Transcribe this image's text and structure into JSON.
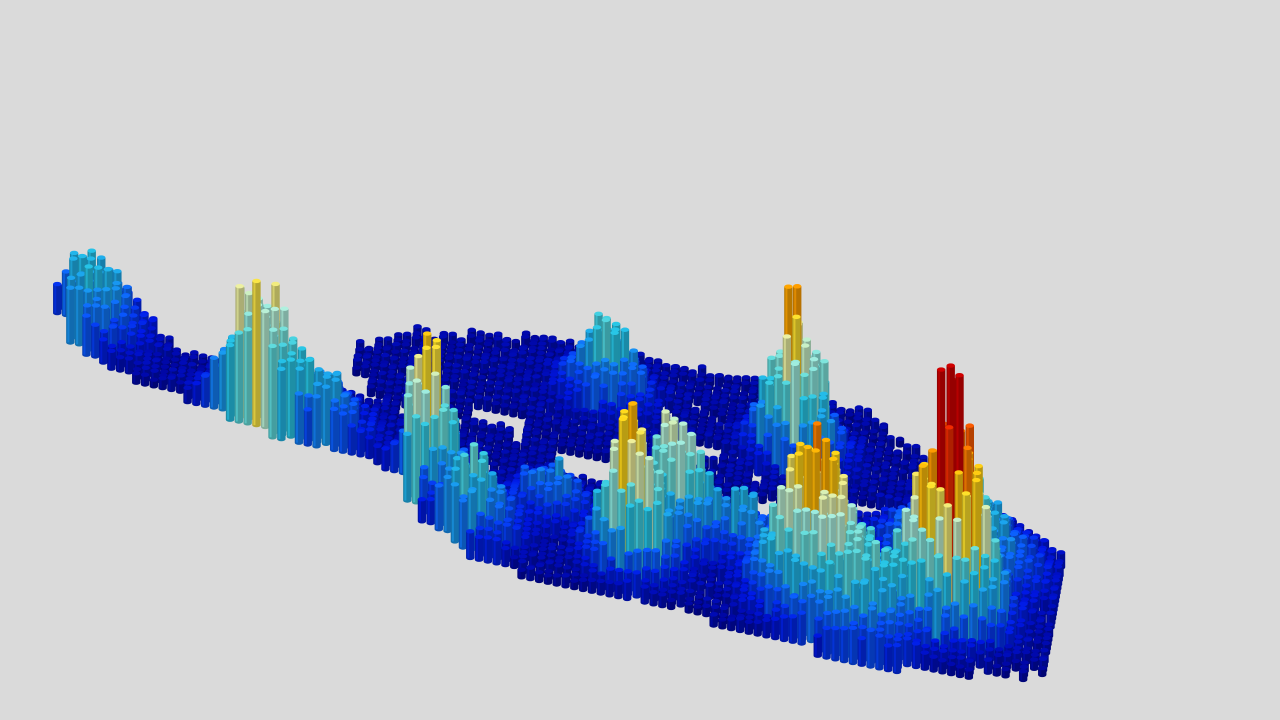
{
  "background": "#dadada",
  "chart_data": {
    "type": "bar3d",
    "title": "",
    "xlabel": "",
    "ylabel": "",
    "zlabel": "",
    "axes_visible": false,
    "grid": false,
    "legend": "none",
    "colormap": [
      "#00008c",
      "#0018e6",
      "#0a5aff",
      "#1aa0f0",
      "#27c6e6",
      "#6ce0dc",
      "#aff0e0",
      "#eef0a0",
      "#ffe020",
      "#ffb000",
      "#ff7a00",
      "#f53000",
      "#d00000"
    ],
    "z_max": 10,
    "peaks": [
      {
        "x": 2,
        "y": 10,
        "z": 3.0,
        "spread": 1.8
      },
      {
        "x": 12,
        "y": 16,
        "z": 5.5,
        "spread": 1.6
      },
      {
        "x": 22,
        "y": 20,
        "z": 6.0,
        "spread": 1.3
      },
      {
        "x": 25,
        "y": 24,
        "z": 3.0,
        "spread": 1.5
      },
      {
        "x": 34,
        "y": 24,
        "z": 6.0,
        "spread": 1.4
      },
      {
        "x": 36,
        "y": 20,
        "z": 5.0,
        "spread": 1.4
      },
      {
        "x": 44,
        "y": 24,
        "z": 5.5,
        "spread": 1.8
      },
      {
        "x": 47,
        "y": 26,
        "z": 3.0,
        "spread": 2.4
      },
      {
        "x": 52,
        "y": 23,
        "z": 9.5,
        "spread": 1.6
      },
      {
        "x": 52,
        "y": 17,
        "z": 3.5,
        "spread": 2.6
      },
      {
        "x": 42,
        "y": 8,
        "z": 6.5,
        "spread": 1.4
      },
      {
        "x": 31,
        "y": 6,
        "z": 3.0,
        "spread": 1.5
      },
      {
        "x": 29,
        "y": 20,
        "z": 2.0,
        "spread": 1.4
      },
      {
        "x": 40,
        "y": 20,
        "z": 2.0,
        "spread": 1.4
      },
      {
        "x": 16,
        "y": 16,
        "z": 2.0,
        "spread": 1.6
      }
    ]
  }
}
